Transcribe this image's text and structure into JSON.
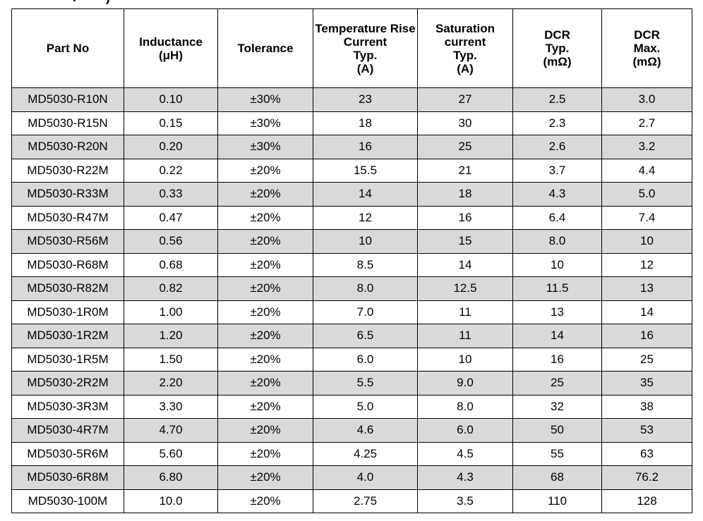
{
  "table": {
    "headers": [
      [
        "Part No"
      ],
      [
        "Inductance",
        "(μH)"
      ],
      [
        "Tolerance"
      ],
      [
        "Temperature Rise",
        "Current",
        "Typ.",
        "(A)"
      ],
      [
        "Saturation",
        "current",
        "Typ.",
        "(A)"
      ],
      [
        "DCR",
        "Typ.",
        "(mΩ)"
      ],
      [
        "DCR",
        "Max.",
        "(mΩ)"
      ]
    ],
    "rows": [
      [
        "MD5030-R10N",
        "0.10",
        "±30%",
        "23",
        "27",
        "2.5",
        "3.0"
      ],
      [
        "MD5030-R15N",
        "0.15",
        "±30%",
        "18",
        "30",
        "2.3",
        "2.7"
      ],
      [
        "MD5030-R20N",
        "0.20",
        "±30%",
        "16",
        "25",
        "2.6",
        "3.2"
      ],
      [
        "MD5030-R22M",
        "0.22",
        "±20%",
        "15.5",
        "21",
        "3.7",
        "4.4"
      ],
      [
        "MD5030-R33M",
        "0.33",
        "±20%",
        "14",
        "18",
        "4.3",
        "5.0"
      ],
      [
        "MD5030-R47M",
        "0.47",
        "±20%",
        "12",
        "16",
        "6.4",
        "7.4"
      ],
      [
        "MD5030-R56M",
        "0.56",
        "±20%",
        "10",
        "15",
        "8.0",
        "10"
      ],
      [
        "MD5030-R68M",
        "0.68",
        "±20%",
        "8.5",
        "14",
        "10",
        "12"
      ],
      [
        "MD5030-R82M",
        "0.82",
        "±20%",
        "8.0",
        "12.5",
        "11.5",
        "13"
      ],
      [
        "MD5030-1R0M",
        "1.00",
        "±20%",
        "7.0",
        "11",
        "13",
        "14"
      ],
      [
        "MD5030-1R2M",
        "1.20",
        "±20%",
        "6.5",
        "11",
        "14",
        "16"
      ],
      [
        "MD5030-1R5M",
        "1.50",
        "±20%",
        "6.0",
        "10",
        "16",
        "25"
      ],
      [
        "MD5030-2R2M",
        "2.20",
        "±20%",
        "5.5",
        "9.0",
        "25",
        "35"
      ],
      [
        "MD5030-3R3M",
        "3.30",
        "±20%",
        "5.0",
        "8.0",
        "32",
        "38"
      ],
      [
        "MD5030-4R7M",
        "4.70",
        "±20%",
        "4.6",
        "6.0",
        "50",
        "53"
      ],
      [
        "MD5030-5R6M",
        "5.60",
        "±20%",
        "4.25",
        "4.5",
        "55",
        "63"
      ],
      [
        "MD5030-6R8M",
        "6.80",
        "±20%",
        "4.0",
        "4.3",
        "68",
        "76.2"
      ],
      [
        "MD5030-100M",
        "10.0",
        "±20%",
        "2.75",
        "3.5",
        "110",
        "128"
      ]
    ]
  }
}
